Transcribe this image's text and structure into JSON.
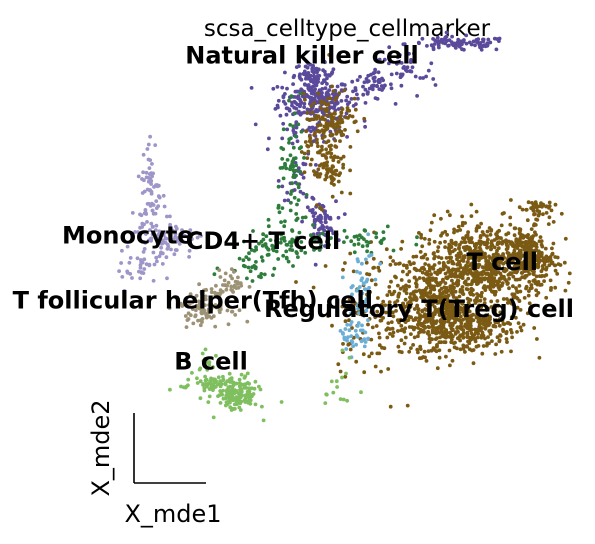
{
  "chart_data": {
    "type": "scatter",
    "title": "scsa_celltype_cellmarker",
    "xlabel": "X_mde1",
    "ylabel": "X_mde2",
    "grid": false,
    "legend": "on data",
    "series": [
      {
        "name": "Natural killer cell",
        "color": "#5b4a9b",
        "blobs": [
          [
            0.0,
            1.4,
            0.07,
            0.06,
            240
          ],
          [
            0.0,
            1.55,
            0.04,
            0.03,
            60
          ],
          [
            0.22,
            1.48,
            0.04,
            0.04,
            50
          ],
          [
            0.55,
            1.72,
            0.1,
            0.02,
            90
          ],
          [
            0.0,
            1.22,
            0.08,
            0.04,
            40
          ],
          [
            -0.05,
            0.95,
            0.04,
            0.06,
            30
          ],
          [
            0.02,
            0.7,
            0.03,
            0.06,
            70
          ],
          [
            0.35,
            1.55,
            0.06,
            0.07,
            40
          ]
        ]
      },
      {
        "name": "T cell",
        "color": "#7b5a14",
        "blobs": [
          [
            0.65,
            0.45,
            0.12,
            0.13,
            700
          ],
          [
            0.45,
            0.25,
            0.08,
            0.12,
            350
          ],
          [
            0.58,
            0.1,
            0.1,
            0.08,
            300
          ],
          [
            0.82,
            0.5,
            0.05,
            0.07,
            200
          ],
          [
            0.85,
            0.78,
            0.03,
            0.03,
            40
          ],
          [
            0.04,
            1.12,
            0.04,
            0.15,
            160
          ],
          [
            0.08,
            1.32,
            0.05,
            0.06,
            60
          ],
          [
            0.28,
            0.2,
            0.12,
            0.18,
            180
          ]
        ]
      },
      {
        "name": "Monocyte",
        "color": "#9e95c8",
        "blobs": [
          [
            -0.63,
            0.88,
            0.02,
            0.15,
            60
          ],
          [
            -0.6,
            0.6,
            0.05,
            0.07,
            70
          ],
          [
            -0.68,
            0.45,
            0.04,
            0.06,
            30
          ],
          [
            -0.5,
            0.62,
            0.05,
            0.03,
            20
          ]
        ]
      },
      {
        "name": "CD4+ T cell",
        "color": "#2e7d3c",
        "blobs": [
          [
            -0.08,
            0.95,
            0.03,
            0.18,
            70
          ],
          [
            -0.15,
            0.55,
            0.07,
            0.05,
            60
          ],
          [
            0.12,
            0.6,
            0.12,
            0.04,
            50
          ],
          [
            -0.25,
            0.45,
            0.05,
            0.04,
            25
          ]
        ]
      },
      {
        "name": "T follicular helper(Tfh) cell",
        "color": "#9e9276",
        "blobs": [
          [
            -0.42,
            0.22,
            0.05,
            0.05,
            90
          ],
          [
            -0.32,
            0.35,
            0.03,
            0.04,
            30
          ]
        ]
      },
      {
        "name": "Regulatory T(Treg) cell",
        "color": "#6baed6",
        "blobs": [
          [
            0.18,
            0.3,
            0.03,
            0.12,
            50
          ],
          [
            0.15,
            0.05,
            0.04,
            0.05,
            30
          ]
        ]
      },
      {
        "name": "B cell",
        "color": "#7fbf5f",
        "blobs": [
          [
            -0.3,
            -0.28,
            0.04,
            0.05,
            150
          ],
          [
            -0.42,
            -0.22,
            0.05,
            0.03,
            50
          ],
          [
            -0.42,
            -0.1,
            0.02,
            0.05,
            15
          ],
          [
            0.1,
            -0.25,
            0.03,
            0.08,
            15
          ]
        ]
      }
    ],
    "annotations": [
      {
        "text": "Natural killer cell",
        "x": -0.05,
        "y": 1.65
      },
      {
        "text": "Monocyte",
        "x": -0.72,
        "y": 0.62
      },
      {
        "text": "CD4+ T cell",
        "x": -0.2,
        "y": 0.59
      },
      {
        "text": "T cell",
        "x": 0.72,
        "y": 0.47
      },
      {
        "text": "T follicular helper(Tfh) cell",
        "x": -0.47,
        "y": 0.25
      },
      {
        "text": "Regulatory T(Treg) cell",
        "x": 0.4,
        "y": 0.2
      },
      {
        "text": "B cell",
        "x": -0.4,
        "y": -0.1
      }
    ]
  }
}
